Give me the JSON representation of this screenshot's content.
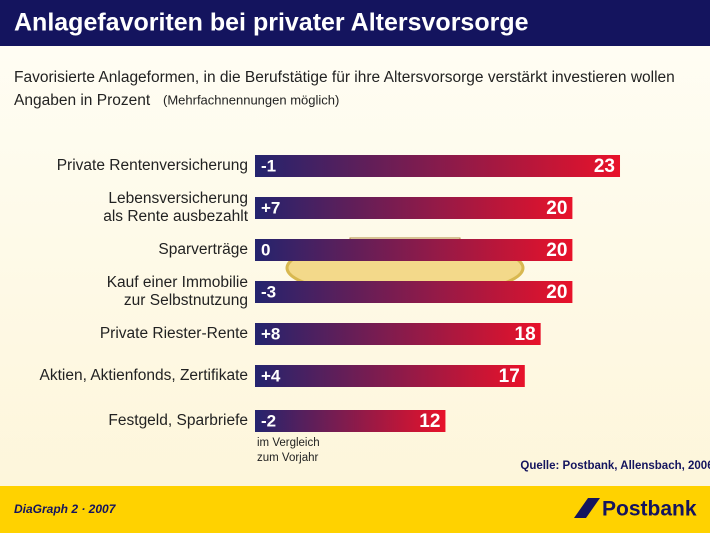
{
  "chart_data": {
    "type": "bar",
    "orientation": "horizontal",
    "title": "Anlagefavoriten bei privater Altersvorsorge",
    "subtitle": "Favorisierte Anlageformen, in die Berufstätige für ihre Altersvorsorge verstärkt investieren wollen",
    "unit_label": "Angaben in Prozent",
    "unit_note": "(Mehrfachnennungen möglich)",
    "categories": [
      [
        "Private Rentenversicherung"
      ],
      [
        "Lebensversicherung",
        "als Rente ausbezahlt"
      ],
      [
        "Sparverträge"
      ],
      [
        "Kauf einer Immobilie",
        "zur Selbstnutzung"
      ],
      [
        "Private Riester-Rente"
      ],
      [
        "Aktien, Aktienfonds, Zertifikate"
      ],
      [
        "Festgeld, Sparbriefe"
      ]
    ],
    "values": [
      23,
      20,
      20,
      20,
      18,
      17,
      12
    ],
    "changes": [
      -1,
      7,
      0,
      -3,
      8,
      4,
      -2
    ],
    "change_labels": [
      "-1",
      "+7",
      "0",
      "-3",
      "+8",
      "+4",
      "-2"
    ],
    "change_note": [
      "im Vergleich",
      "zum Vorjahr"
    ],
    "colors": [
      "#24246e",
      "#e8122a"
    ],
    "source": "Quelle: Postbank, Allensbach, 2006",
    "footer": "DiaGraph 2 · 2007",
    "brand": "Postbank"
  }
}
